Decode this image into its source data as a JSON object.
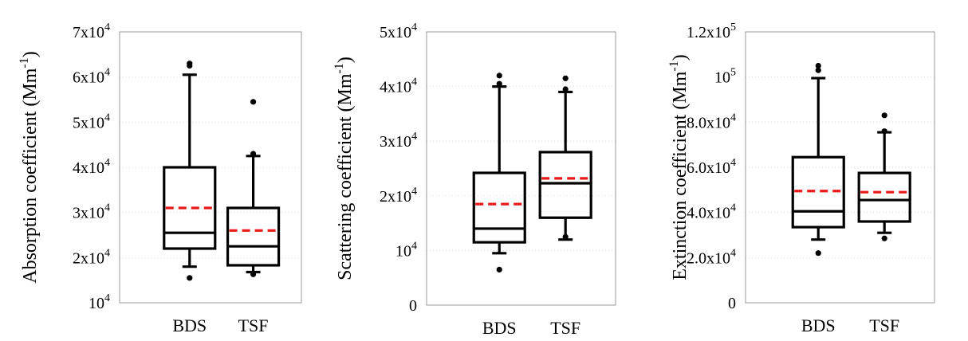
{
  "chart_data": [
    {
      "type": "box",
      "ylabel": "Absorption coefficient (Mm",
      "ylabel_sup": "-1",
      "ylabel_tail": ")",
      "ylim": [
        10000,
        70000
      ],
      "yticks": [
        {
          "value": 10000,
          "mantissa": "10",
          "exp": "4"
        },
        {
          "value": 20000,
          "mantissa": "2x10",
          "exp": "4"
        },
        {
          "value": 30000,
          "mantissa": "3x10",
          "exp": "4"
        },
        {
          "value": 40000,
          "mantissa": "4x10",
          "exp": "4"
        },
        {
          "value": 50000,
          "mantissa": "5x10",
          "exp": "4"
        },
        {
          "value": 60000,
          "mantissa": "6x10",
          "exp": "4"
        },
        {
          "value": 70000,
          "mantissa": "7x10",
          "exp": "4"
        }
      ],
      "grid": true,
      "categories": [
        "BDS",
        "TSF"
      ],
      "boxes": [
        {
          "category": "BDS",
          "whisker_low": 18000,
          "q1": 22000,
          "median": 25500,
          "mean": 31000,
          "q3": 40000,
          "whisker_high": 60500,
          "outliers": [
            15500,
            62500,
            63000
          ]
        },
        {
          "category": "TSF",
          "whisker_low": 16800,
          "q1": 18300,
          "median": 22500,
          "mean": 26000,
          "q3": 31000,
          "whisker_high": 42500,
          "outliers": [
            16300,
            43000,
            54500
          ]
        }
      ]
    },
    {
      "type": "box",
      "ylabel": "Scattering coefficient (Mm",
      "ylabel_sup": "-1",
      "ylabel_tail": ")",
      "ylim": [
        0,
        50000
      ],
      "yticks": [
        {
          "value": 0,
          "mantissa": "0",
          "exp": ""
        },
        {
          "value": 10000,
          "mantissa": "10",
          "exp": "4"
        },
        {
          "value": 20000,
          "mantissa": "2x10",
          "exp": "4"
        },
        {
          "value": 30000,
          "mantissa": "3x10",
          "exp": "4"
        },
        {
          "value": 40000,
          "mantissa": "4x10",
          "exp": "4"
        },
        {
          "value": 50000,
          "mantissa": "5x10",
          "exp": "4"
        }
      ],
      "grid": true,
      "categories": [
        "BDS",
        "TSF"
      ],
      "boxes": [
        {
          "category": "BDS",
          "whisker_low": 9500,
          "q1": 11500,
          "median": 14000,
          "mean": 18500,
          "q3": 24200,
          "whisker_high": 40000,
          "outliers": [
            6500,
            40500,
            42000
          ]
        },
        {
          "category": "TSF",
          "whisker_low": 12000,
          "q1": 16000,
          "median": 22300,
          "mean": 23200,
          "q3": 28000,
          "whisker_high": 39000,
          "outliers": [
            12500,
            39500,
            41500
          ]
        }
      ]
    },
    {
      "type": "box",
      "ylabel": "Extinction coefficient (Mm",
      "ylabel_sup": "-1",
      "ylabel_tail": ")",
      "ylim": [
        0,
        120000
      ],
      "yticks": [
        {
          "value": 0,
          "mantissa": "0",
          "exp": ""
        },
        {
          "value": 20000,
          "mantissa": "2.0x10",
          "exp": "4"
        },
        {
          "value": 40000,
          "mantissa": "4.0x10",
          "exp": "4"
        },
        {
          "value": 60000,
          "mantissa": "6.0x10",
          "exp": "4"
        },
        {
          "value": 80000,
          "mantissa": "8.0x10",
          "exp": "4"
        },
        {
          "value": 100000,
          "mantissa": "10",
          "exp": "5"
        },
        {
          "value": 120000,
          "mantissa": "1.2x10",
          "exp": "5"
        }
      ],
      "grid": true,
      "categories": [
        "BDS",
        "TSF"
      ],
      "boxes": [
        {
          "category": "BDS",
          "whisker_low": 28000,
          "q1": 33500,
          "median": 40500,
          "mean": 49500,
          "q3": 64500,
          "whisker_high": 99500,
          "outliers": [
            22000,
            103000,
            105000
          ]
        },
        {
          "category": "TSF",
          "whisker_low": 31000,
          "q1": 36000,
          "median": 45500,
          "mean": 49000,
          "q3": 57500,
          "whisker_high": 75500,
          "outliers": [
            28500,
            76000,
            83000
          ]
        }
      ]
    }
  ]
}
